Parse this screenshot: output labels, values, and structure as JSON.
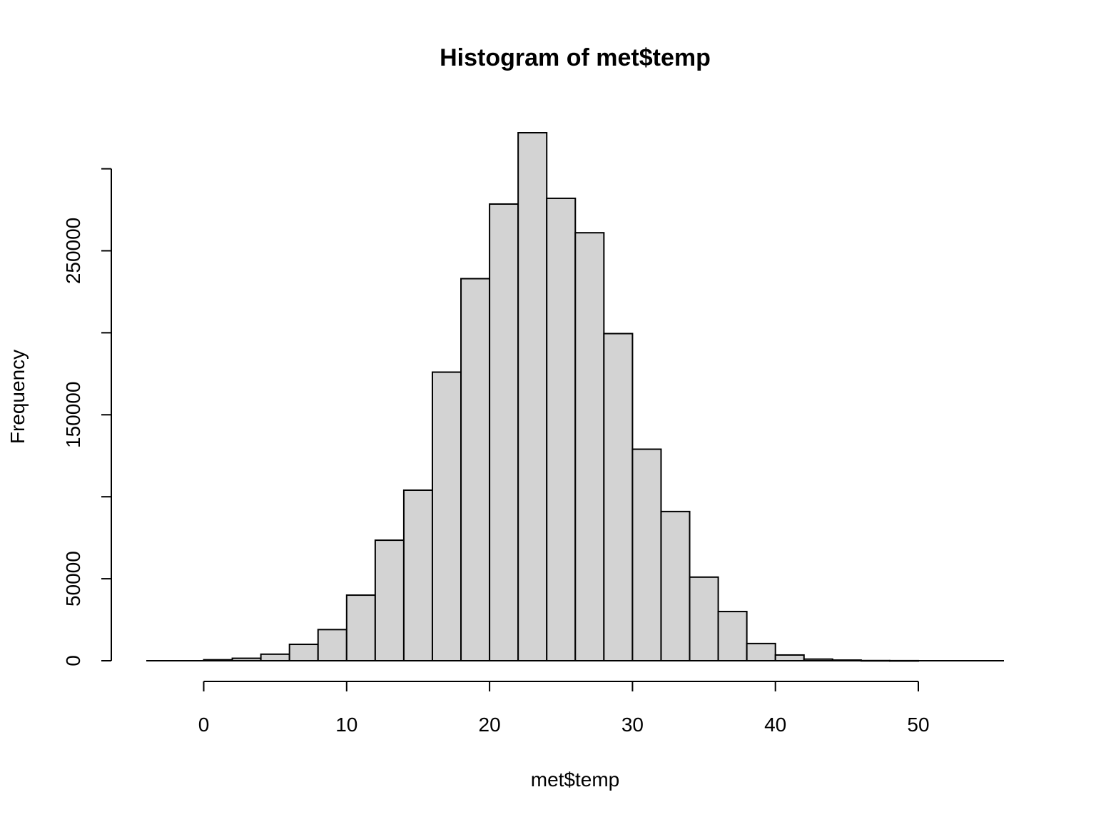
{
  "chart_data": {
    "type": "bar",
    "title": "Histogram of met$temp",
    "xlabel": "met$temp",
    "ylabel": "Frequency",
    "x_ticks": [
      "0",
      "10",
      "20",
      "30",
      "40",
      "50"
    ],
    "y_ticks": [
      "0",
      "50000",
      "150000",
      "250000"
    ],
    "x_tick_values": [
      0,
      10,
      20,
      30,
      40,
      50
    ],
    "y_tick_values": [
      0,
      50000,
      100000,
      150000,
      200000,
      250000,
      300000
    ],
    "y_tick_labels": [
      "0",
      "50000",
      "",
      "150000",
      "",
      "250000",
      ""
    ],
    "xlim": [
      -4,
      56
    ],
    "ylim": [
      0,
      322000
    ],
    "bin_width": 2,
    "bins": [
      {
        "x0": 0,
        "x1": 2,
        "value": 600
      },
      {
        "x0": 2,
        "x1": 4,
        "value": 1500
      },
      {
        "x0": 4,
        "x1": 6,
        "value": 4000
      },
      {
        "x0": 6,
        "x1": 8,
        "value": 10000
      },
      {
        "x0": 8,
        "x1": 10,
        "value": 19000
      },
      {
        "x0": 10,
        "x1": 12,
        "value": 40000
      },
      {
        "x0": 12,
        "x1": 14,
        "value": 73500
      },
      {
        "x0": 14,
        "x1": 16,
        "value": 104000
      },
      {
        "x0": 16,
        "x1": 18,
        "value": 176000
      },
      {
        "x0": 18,
        "x1": 20,
        "value": 233000
      },
      {
        "x0": 20,
        "x1": 22,
        "value": 278500
      },
      {
        "x0": 22,
        "x1": 24,
        "value": 322000
      },
      {
        "x0": 24,
        "x1": 26,
        "value": 282000
      },
      {
        "x0": 26,
        "x1": 28,
        "value": 261000
      },
      {
        "x0": 28,
        "x1": 30,
        "value": 199500
      },
      {
        "x0": 30,
        "x1": 32,
        "value": 129000
      },
      {
        "x0": 32,
        "x1": 34,
        "value": 91000
      },
      {
        "x0": 34,
        "x1": 36,
        "value": 51000
      },
      {
        "x0": 36,
        "x1": 38,
        "value": 30000
      },
      {
        "x0": 38,
        "x1": 40,
        "value": 10500
      },
      {
        "x0": 40,
        "x1": 42,
        "value": 3500
      },
      {
        "x0": 42,
        "x1": 44,
        "value": 1000
      },
      {
        "x0": 44,
        "x1": 46,
        "value": 400
      },
      {
        "x0": 46,
        "x1": 48,
        "value": 100
      },
      {
        "x0": 48,
        "x1": 50,
        "value": 50
      }
    ],
    "colors": {
      "bar_fill": "#d3d3d3",
      "bar_stroke": "#000000"
    },
    "grid": false
  }
}
